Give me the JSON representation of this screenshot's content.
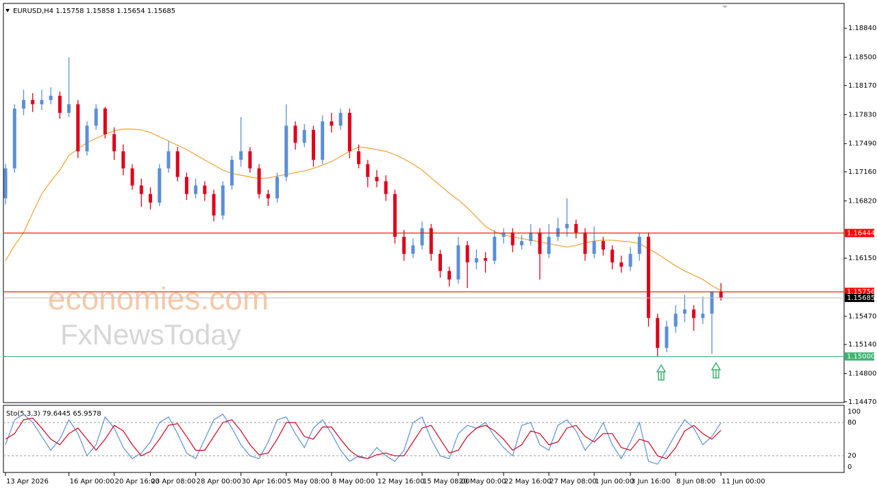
{
  "chart_data": [
    {
      "type": "candlestick",
      "title": "EURUSD,H4 1.15758 1.15858 1.15654 1.15685",
      "annotations": [
        "economies.com",
        "FxNewsToday"
      ],
      "xlim": [
        -0.23,
        92.6
      ],
      "xticks": [
        {
          "value": 0,
          "label": "13 Apr 2026"
        },
        {
          "value": 7,
          "label": "16 Apr 00:00"
        },
        {
          "value": 12,
          "label": "20 Apr 16:00"
        },
        {
          "value": 16,
          "label": "23 Apr 08:00"
        },
        {
          "value": 21,
          "label": "28 Apr 00:00"
        },
        {
          "value": 26,
          "label": "30 Apr 16:00"
        },
        {
          "value": 31,
          "label": "5 May 08:00"
        },
        {
          "value": 36,
          "label": "8 May 00:00"
        },
        {
          "value": 41,
          "label": "12 May 16:00"
        },
        {
          "value": 46,
          "label": "15 May 08:00"
        },
        {
          "value": 50,
          "label": "20 May 00:00"
        },
        {
          "value": 55,
          "label": "22 May 16:00"
        },
        {
          "value": 60,
          "label": "27 May 08:00"
        },
        {
          "value": 65,
          "label": "1 Jun 00:00"
        },
        {
          "value": 69,
          "label": "3 Jun 16:00"
        },
        {
          "value": 74,
          "label": "8 Jun 08:00"
        },
        {
          "value": 79,
          "label": "11 Jun 00:00"
        }
      ],
      "ylim": [
        1.1446,
        1.1913
      ],
      "yticks": [
        {
          "value": 1.1884,
          "label": "1.18840"
        },
        {
          "value": 1.185,
          "label": "1.18500"
        },
        {
          "value": 1.1817,
          "label": "1.18170"
        },
        {
          "value": 1.1783,
          "label": "1.17830"
        },
        {
          "value": 1.1749,
          "label": "1.17490"
        },
        {
          "value": 1.1716,
          "label": "1.17160"
        },
        {
          "value": 1.1682,
          "label": "1.16820"
        },
        {
          "value": 1.1615,
          "label": "1.16150"
        },
        {
          "value": 1.1547,
          "label": "1.15470"
        },
        {
          "value": 1.1514,
          "label": "1.15140"
        },
        {
          "value": 1.148,
          "label": "1.14800"
        },
        {
          "value": 1.1447,
          "label": "1.14470"
        }
      ],
      "up_color": "#5b8fd8",
      "down_color": "#e0001b",
      "candles": {
        "open": [
          1.1685,
          1.172,
          1.179,
          1.18,
          1.1795,
          1.18,
          1.1805,
          1.1785,
          1.1795,
          1.174,
          1.177,
          1.179,
          1.176,
          1.174,
          1.172,
          1.17,
          1.169,
          1.168,
          1.172,
          1.174,
          1.171,
          1.169,
          1.17,
          1.169,
          1.1665,
          1.17,
          1.173,
          1.174,
          1.172,
          1.169,
          1.1685,
          1.171,
          1.177,
          1.175,
          1.1765,
          1.173,
          1.1775,
          1.177,
          1.1785,
          1.174,
          1.1725,
          1.171,
          1.1705,
          1.169,
          1.164,
          1.162,
          1.163,
          1.165,
          1.162,
          1.16,
          1.159,
          1.163,
          1.161,
          1.1615,
          1.1612,
          1.164,
          1.1645,
          1.163,
          1.1635,
          1.1645,
          1.162,
          1.164,
          1.165,
          1.1655,
          1.1645,
          1.162,
          1.1635,
          1.1625,
          1.161,
          1.1605,
          1.162,
          1.164,
          1.1545,
          1.151,
          1.1535,
          1.155,
          1.1555,
          1.1545,
          1.155,
          1.15758
        ],
        "high": [
          1.1725,
          1.1795,
          1.1812,
          1.1808,
          1.1812,
          1.1815,
          1.181,
          1.185,
          1.18,
          1.1775,
          1.1795,
          1.1792,
          1.1768,
          1.1748,
          1.1725,
          1.1708,
          1.1698,
          1.1725,
          1.1752,
          1.1745,
          1.1715,
          1.1708,
          1.1705,
          1.1695,
          1.1705,
          1.1735,
          1.178,
          1.1745,
          1.1725,
          1.1695,
          1.1715,
          1.1795,
          1.1775,
          1.1772,
          1.177,
          1.1782,
          1.1785,
          1.179,
          1.179,
          1.1748,
          1.173,
          1.1718,
          1.1712,
          1.1695,
          1.1648,
          1.1638,
          1.1658,
          1.1655,
          1.1625,
          1.1605,
          1.164,
          1.1635,
          1.1625,
          1.1622,
          1.1648,
          1.165,
          1.165,
          1.1642,
          1.1655,
          1.165,
          1.1655,
          1.1662,
          1.1685,
          1.166,
          1.165,
          1.1652,
          1.164,
          1.163,
          1.1618,
          1.1628,
          1.1645,
          1.1645,
          1.155,
          1.1542,
          1.156,
          1.1572,
          1.156,
          1.157,
          1.1575,
          1.15858
        ],
        "low": [
          1.1678,
          1.1715,
          1.1782,
          1.1786,
          1.1788,
          1.1795,
          1.1778,
          1.178,
          1.1732,
          1.1735,
          1.1765,
          1.1755,
          1.173,
          1.1712,
          1.1695,
          1.1675,
          1.1672,
          1.1676,
          1.1715,
          1.1705,
          1.1683,
          1.1685,
          1.1682,
          1.1658,
          1.166,
          1.1695,
          1.1722,
          1.1715,
          1.1685,
          1.1676,
          1.168,
          1.1705,
          1.1742,
          1.1745,
          1.1722,
          1.1725,
          1.1762,
          1.1765,
          1.1732,
          1.172,
          1.1698,
          1.1698,
          1.1682,
          1.1632,
          1.1612,
          1.1615,
          1.1625,
          1.1612,
          1.1592,
          1.1582,
          1.1585,
          1.158,
          1.1602,
          1.1598,
          1.1608,
          1.1632,
          1.1622,
          1.1625,
          1.163,
          1.159,
          1.1615,
          1.1635,
          1.164,
          1.1638,
          1.1612,
          1.1615,
          1.1618,
          1.1602,
          1.1598,
          1.16,
          1.1612,
          1.1535,
          1.15,
          1.1505,
          1.1528,
          1.154,
          1.153,
          1.1538,
          1.1503,
          1.15654
        ],
        "close": [
          1.172,
          1.179,
          1.18,
          1.1795,
          1.18,
          1.1805,
          1.1785,
          1.1795,
          1.174,
          1.177,
          1.179,
          1.176,
          1.174,
          1.172,
          1.17,
          1.169,
          1.168,
          1.172,
          1.174,
          1.171,
          1.169,
          1.17,
          1.169,
          1.1665,
          1.17,
          1.173,
          1.174,
          1.172,
          1.169,
          1.1685,
          1.171,
          1.177,
          1.175,
          1.1765,
          1.173,
          1.1775,
          1.177,
          1.1785,
          1.174,
          1.1725,
          1.171,
          1.1705,
          1.169,
          1.164,
          1.162,
          1.163,
          1.165,
          1.162,
          1.16,
          1.159,
          1.163,
          1.161,
          1.1615,
          1.1612,
          1.164,
          1.1645,
          1.163,
          1.1635,
          1.1645,
          1.162,
          1.164,
          1.165,
          1.1655,
          1.1645,
          1.162,
          1.1635,
          1.1625,
          1.161,
          1.1605,
          1.162,
          1.164,
          1.1545,
          1.151,
          1.1535,
          1.155,
          1.1555,
          1.1545,
          1.155,
          1.15758,
          1.15685
        ]
      },
      "ma": {
        "color": "#f0a030",
        "values": [
          1.1612,
          1.163,
          1.1645,
          1.1668,
          1.169,
          1.1705,
          1.1718,
          1.1735,
          1.1743,
          1.175,
          1.1755,
          1.176,
          1.1764,
          1.1766,
          1.1766,
          1.1765,
          1.1762,
          1.1757,
          1.1752,
          1.1747,
          1.1742,
          1.1736,
          1.173,
          1.1724,
          1.1718,
          1.1714,
          1.1712,
          1.171,
          1.1708,
          1.1709,
          1.1711,
          1.1713,
          1.1715,
          1.1717,
          1.172,
          1.1724,
          1.1728,
          1.1734,
          1.174,
          1.1745,
          1.1744,
          1.1742,
          1.174,
          1.1736,
          1.1731,
          1.1725,
          1.1718,
          1.1709,
          1.17,
          1.1691,
          1.1683,
          1.1674,
          1.1663,
          1.1652,
          1.1646,
          1.1642,
          1.164,
          1.1638,
          1.1636,
          1.1634,
          1.1632,
          1.163,
          1.1628,
          1.163,
          1.1633,
          1.1635,
          1.1636,
          1.1636,
          1.1635,
          1.1634,
          1.1632,
          1.1626,
          1.162,
          1.1613,
          1.1606,
          1.16,
          1.1595,
          1.159,
          1.1583,
          1.1577
        ]
      },
      "hlines": [
        {
          "value": 1.16444,
          "color": "#ff0000",
          "box_color": "#ff0000"
        },
        {
          "value": 1.15756,
          "color": "#ff0000",
          "box_color": "#ff0000"
        },
        {
          "value": 1.15685,
          "color": "#c0c0c0",
          "box_color": "#000000"
        },
        {
          "value": 1.15,
          "label": "1.15000",
          "color": "#3cb371",
          "box_color": "#3cb371"
        }
      ]
    },
    {
      "type": "line",
      "title": "Sto(5,3,3) 79.6445 65.9578",
      "ylim": [
        -10,
        111
      ],
      "yticks": [
        0,
        20,
        80,
        100
      ],
      "levels": [
        20,
        80
      ],
      "series": [
        {
          "color": "#5b8fd8",
          "values": [
            40,
            85,
            95,
            80,
            55,
            30,
            50,
            85,
            60,
            20,
            40,
            90,
            70,
            35,
            15,
            25,
            45,
            80,
            90,
            60,
            25,
            15,
            50,
            85,
            95,
            70,
            40,
            20,
            15,
            45,
            85,
            90,
            60,
            35,
            70,
            85,
            60,
            30,
            10,
            20,
            15,
            35,
            20,
            10,
            30,
            80,
            90,
            50,
            20,
            15,
            60,
            75,
            70,
            80,
            55,
            35,
            20,
            75,
            80,
            40,
            30,
            75,
            85,
            65,
            30,
            50,
            80,
            40,
            15,
            45,
            80,
            10,
            5,
            30,
            60,
            85,
            70,
            40,
            55,
            79.6445
          ]
        },
        {
          "color": "#d0001b",
          "values": [
            50,
            60,
            85,
            88,
            70,
            50,
            40,
            60,
            70,
            50,
            30,
            50,
            75,
            65,
            40,
            20,
            28,
            50,
            75,
            78,
            55,
            30,
            30,
            55,
            80,
            85,
            65,
            40,
            22,
            25,
            50,
            80,
            80,
            55,
            50,
            72,
            72,
            50,
            30,
            18,
            15,
            22,
            25,
            20,
            20,
            45,
            70,
            75,
            50,
            25,
            30,
            55,
            70,
            75,
            65,
            50,
            30,
            40,
            65,
            60,
            40,
            45,
            70,
            75,
            55,
            45,
            60,
            60,
            35,
            30,
            50,
            45,
            20,
            15,
            35,
            65,
            75,
            60,
            50,
            65.9578
          ]
        }
      ]
    }
  ]
}
